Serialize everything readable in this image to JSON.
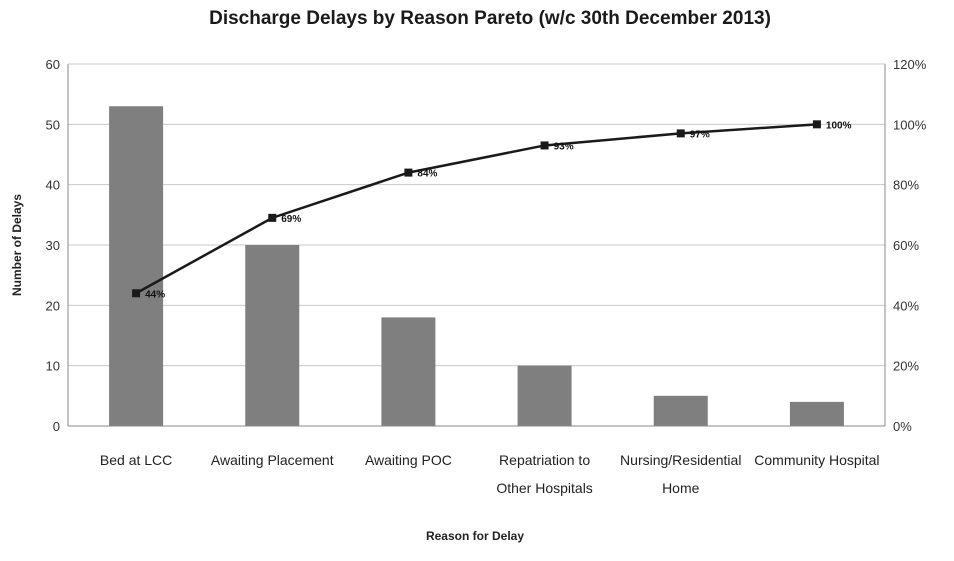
{
  "chart_data": {
    "type": "bar",
    "title": "Discharge Delays by Reason Pareto (w/c 30th December 2013)",
    "xlabel": "Reason for Delay",
    "ylabel": "Number of Delays",
    "categories": [
      [
        "Bed at LCC"
      ],
      [
        "Awaiting Placement"
      ],
      [
        "Awaiting POC"
      ],
      [
        "Repatriation to",
        "Other Hospitals"
      ],
      [
        "Nursing/Residential",
        "Home"
      ],
      [
        "Community Hospital"
      ]
    ],
    "ylim": [
      0,
      60
    ],
    "y_ticks": [
      0,
      10,
      20,
      30,
      40,
      50,
      60
    ],
    "y2lim": [
      0,
      120
    ],
    "y2_ticks": [
      "0%",
      "20%",
      "40%",
      "60%",
      "80%",
      "100%",
      "120%"
    ],
    "grid": true,
    "legend": "none",
    "series": [
      {
        "type": "bar",
        "axis": "left",
        "color": "#7f7f7f",
        "values": [
          53,
          30,
          18,
          10,
          5,
          4
        ]
      },
      {
        "type": "line",
        "axis": "right",
        "color": "#1a1a1a",
        "values": [
          44,
          69,
          84,
          93,
          97,
          100
        ],
        "labels": [
          "44%",
          "69%",
          "84%",
          "93%",
          "97%",
          "100%"
        ]
      }
    ]
  }
}
